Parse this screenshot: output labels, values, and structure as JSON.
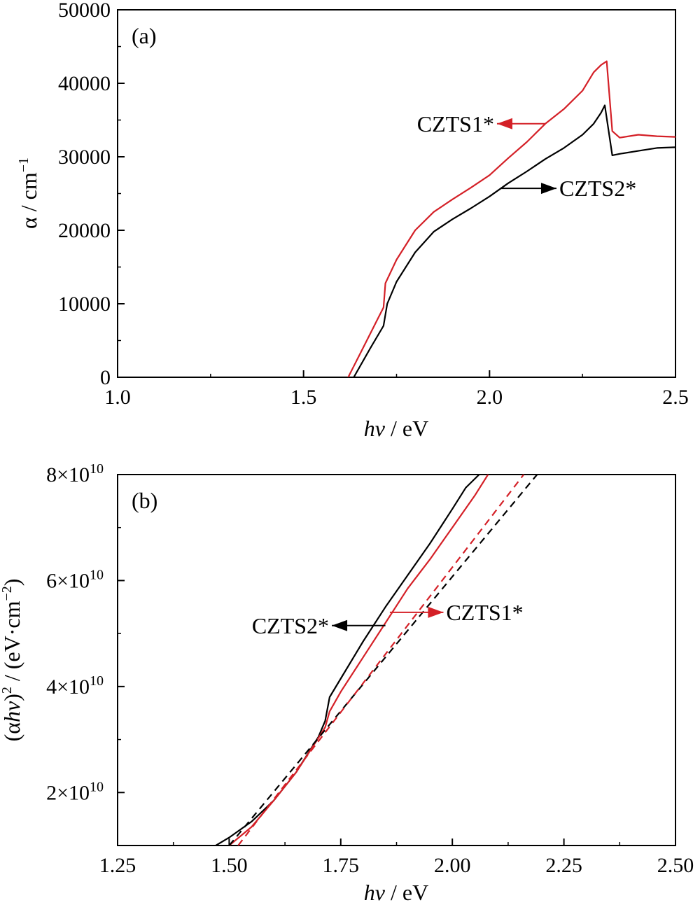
{
  "chart_data": [
    {
      "type": "line",
      "panel_label": "(a)",
      "xlabel_italic": "hv",
      "xlabel_rest": " / eV",
      "ylabel_main": "α / cm",
      "ylabel_sup": "−1",
      "xlim": [
        1.0,
        2.5
      ],
      "ylim": [
        0,
        50000
      ],
      "xticks": [
        1.0,
        1.5,
        2.0,
        2.5
      ],
      "xtick_labels": [
        "1.0",
        "1.5",
        "2.0",
        "2.5"
      ],
      "yticks": [
        0,
        10000,
        20000,
        30000,
        40000,
        50000
      ],
      "ytick_labels": [
        "0",
        "10000",
        "20000",
        "30000",
        "40000",
        "50000"
      ],
      "grid": false,
      "series": [
        {
          "name": "CZTS1*",
          "color": "#d42027",
          "x": [
            1.62,
            1.66,
            1.7,
            1.715,
            1.72,
            1.75,
            1.8,
            1.85,
            1.9,
            1.95,
            2.0,
            2.05,
            2.1,
            2.15,
            2.2,
            2.25,
            2.28,
            2.3,
            2.315,
            2.33,
            2.35,
            2.4,
            2.45,
            2.5
          ],
          "y": [
            0,
            4000,
            8000,
            9500,
            12800,
            16000,
            20000,
            22500,
            24200,
            25800,
            27500,
            29800,
            32000,
            34500,
            36500,
            39000,
            41500,
            42500,
            43000,
            33500,
            32600,
            33000,
            32800,
            32700
          ]
        },
        {
          "name": "CZTS2*",
          "color": "#000000",
          "x": [
            1.635,
            1.68,
            1.715,
            1.725,
            1.75,
            1.8,
            1.85,
            1.9,
            1.95,
            2.0,
            2.05,
            2.1,
            2.15,
            2.2,
            2.25,
            2.28,
            2.3,
            2.31,
            2.33,
            2.35,
            2.4,
            2.45,
            2.5
          ],
          "y": [
            0,
            4000,
            7000,
            10000,
            13000,
            17000,
            19800,
            21500,
            23000,
            24600,
            26400,
            28000,
            29700,
            31200,
            33000,
            34500,
            36000,
            37000,
            30200,
            30400,
            30800,
            31200,
            31300
          ]
        }
      ],
      "annotations": [
        {
          "text": "CZTS1*",
          "color": "#d42027",
          "arrow_from": [
            2.15,
            34500
          ],
          "arrow_to": [
            2.02,
            34500
          ],
          "arrow_direction": "left"
        },
        {
          "text": "CZTS2*",
          "color": "#000000",
          "arrow_from": [
            2.03,
            25700
          ],
          "arrow_to": [
            2.18,
            25700
          ],
          "arrow_direction": "right"
        }
      ]
    },
    {
      "type": "line",
      "panel_label": "(b)",
      "xlabel_italic": "hv",
      "xlabel_rest": " / eV",
      "ylabel_open": "(α",
      "ylabel_italic": "hv",
      "ylabel_close": ")",
      "ylabel_sup": "2",
      "ylabel_mid": " / (eV·cm",
      "ylabel_sup2": "−2",
      "ylabel_end": ")",
      "xlim": [
        1.25,
        2.5
      ],
      "ylim": [
        10000000000,
        80000000000
      ],
      "xticks": [
        1.25,
        1.5,
        1.75,
        2.0,
        2.25,
        2.5
      ],
      "xtick_labels": [
        "1.25",
        "1.50",
        "1.75",
        "2.00",
        "2.25",
        "2.50"
      ],
      "yticks": [
        20000000000,
        40000000000,
        60000000000,
        80000000000
      ],
      "ytick_mant": [
        "2",
        "4",
        "6",
        "8"
      ],
      "ytick_exp": "10",
      "ytick_times": "×10",
      "grid": false,
      "series": [
        {
          "name": "CZTS2*",
          "color": "#000000",
          "style": "solid",
          "x": [
            1.47,
            1.5,
            1.55,
            1.6,
            1.65,
            1.7,
            1.715,
            1.725,
            1.75,
            1.8,
            1.85,
            1.9,
            1.95,
            2.0,
            2.03,
            2.06
          ],
          "y": [
            10000000000,
            11500000000,
            14500000000,
            18500000000,
            23800000000,
            30500000000,
            33500000000,
            38000000000,
            41500000000,
            48500000000,
            55000000000,
            61000000000,
            67000000000,
            73500000000,
            77500000000,
            80000000000
          ]
        },
        {
          "name": "CZTS1*",
          "color": "#d42027",
          "style": "solid",
          "x": [
            1.5,
            1.55,
            1.6,
            1.65,
            1.7,
            1.715,
            1.725,
            1.75,
            1.8,
            1.85,
            1.9,
            1.95,
            2.0,
            2.05,
            2.08
          ],
          "y": [
            10000000000,
            13500000000,
            18500000000,
            23800000000,
            30300000000,
            32300000000,
            35300000000,
            39000000000,
            45500000000,
            52000000000,
            58500000000,
            64000000000,
            70000000000,
            76000000000,
            80000000000
          ]
        },
        {
          "name": "CZTS2* fit",
          "color": "#000000",
          "style": "dashed",
          "x": [
            1.5,
            2.19
          ],
          "y": [
            10000000000,
            80000000000
          ]
        },
        {
          "name": "CZTS1* fit",
          "color": "#d42027",
          "style": "dashed",
          "x": [
            1.52,
            2.16
          ],
          "y": [
            10000000000,
            80000000000
          ]
        }
      ],
      "annotations": [
        {
          "text": "CZTS2*",
          "color": "#000000",
          "arrow_from": [
            1.85,
            51500000000
          ],
          "arrow_to": [
            1.73,
            51500000000
          ],
          "arrow_direction": "left"
        },
        {
          "text": "CZTS1*",
          "color": "#d42027",
          "arrow_from": [
            1.86,
            54000000000
          ],
          "arrow_to": [
            1.98,
            54000000000
          ],
          "arrow_direction": "right"
        }
      ]
    }
  ]
}
